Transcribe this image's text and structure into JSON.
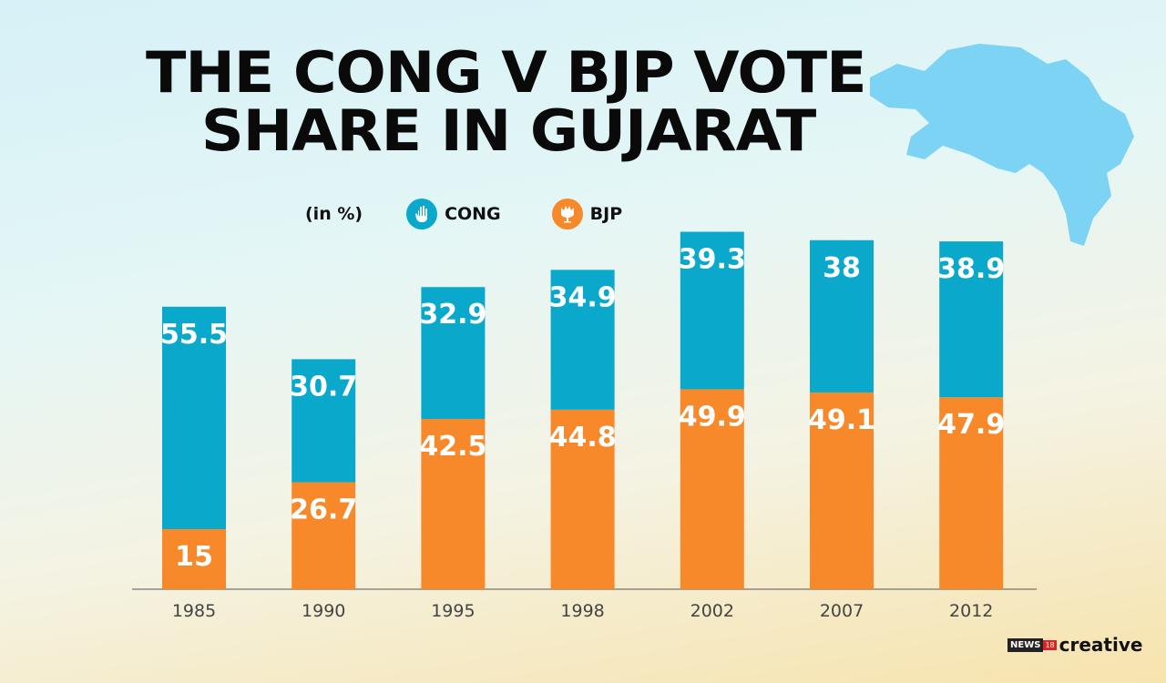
{
  "title_lines": [
    "THE CONG V BJP VOTE",
    "SHARE IN GUJARAT"
  ],
  "legend": {
    "unit": "(in %)",
    "cong": "CONG",
    "bjp": "BJP"
  },
  "logo": {
    "news": "NEWS",
    "num": "18",
    "creative": "creative"
  },
  "colors": {
    "cong": "#0aa8cb",
    "bjp": "#f7892b",
    "map": "#7dd3f3"
  },
  "chart_data": {
    "type": "bar",
    "stacked": true,
    "categories": [
      "1985",
      "1990",
      "1995",
      "1998",
      "2002",
      "2007",
      "2012"
    ],
    "series": [
      {
        "name": "BJP",
        "values": [
          15,
          26.7,
          42.5,
          44.8,
          49.9,
          49.1,
          47.9
        ]
      },
      {
        "name": "CONG",
        "values": [
          55.5,
          30.7,
          32.9,
          34.9,
          39.3,
          38,
          38.9
        ]
      }
    ],
    "ylabel": "(in %)",
    "grid": false,
    "legend_position": "top-left"
  }
}
